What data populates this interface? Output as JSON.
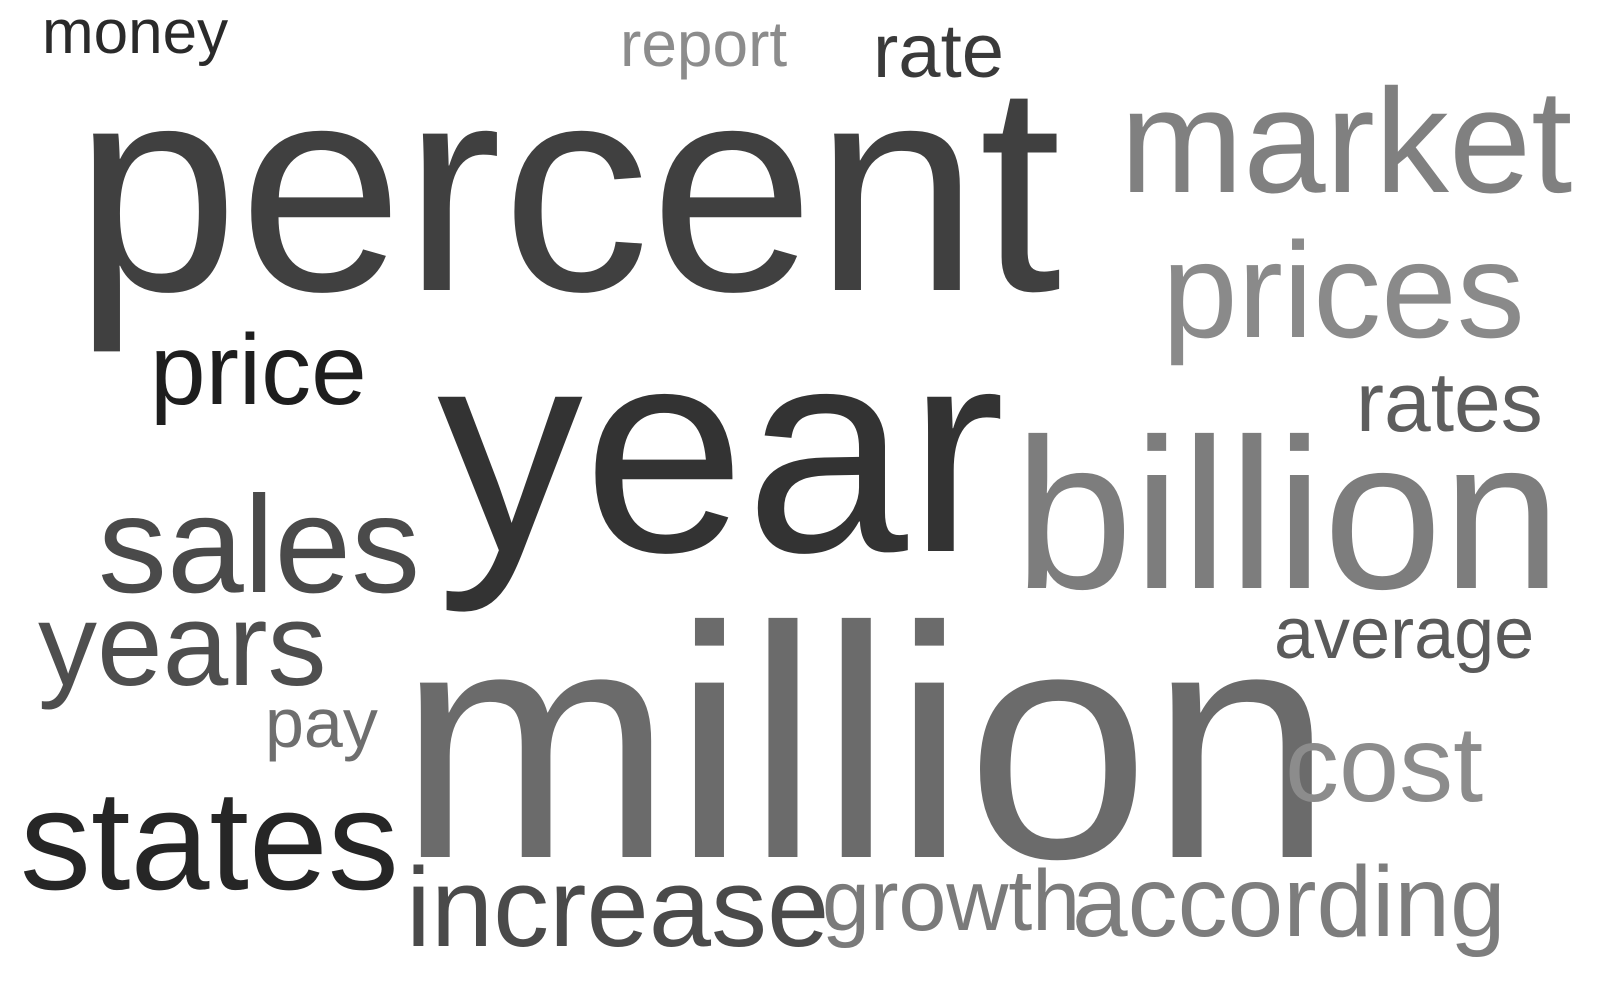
{
  "words": [
    {
      "id": "money",
      "text": "money",
      "color": "#2a2a2a"
    },
    {
      "id": "report",
      "text": "report",
      "color": "#8c8c8c"
    },
    {
      "id": "rate",
      "text": "rate",
      "color": "#3a3a3a"
    },
    {
      "id": "percent",
      "text": "percent",
      "color": "#404040"
    },
    {
      "id": "market",
      "text": "market",
      "color": "#808080"
    },
    {
      "id": "prices",
      "text": "prices",
      "color": "#8a8a8a"
    },
    {
      "id": "price",
      "text": "price",
      "color": "#1e1e1e"
    },
    {
      "id": "year",
      "text": "year",
      "color": "#333333"
    },
    {
      "id": "rates",
      "text": "rates",
      "color": "#5e5e5e"
    },
    {
      "id": "billion",
      "text": "billion",
      "color": "#7d7d7d"
    },
    {
      "id": "sales",
      "text": "sales",
      "color": "#4a4a4a"
    },
    {
      "id": "years",
      "text": "years",
      "color": "#4e4e4e"
    },
    {
      "id": "average",
      "text": "average",
      "color": "#5a5a5a"
    },
    {
      "id": "pay",
      "text": "pay",
      "color": "#6e6e6e"
    },
    {
      "id": "million",
      "text": "million",
      "color": "#6b6b6b"
    },
    {
      "id": "cost",
      "text": "cost",
      "color": "#8c8c8c"
    },
    {
      "id": "states",
      "text": "states",
      "color": "#262626"
    },
    {
      "id": "increase",
      "text": "increase",
      "color": "#4a4a4a"
    },
    {
      "id": "growth",
      "text": "growth",
      "color": "#7a7a7a"
    },
    {
      "id": "according",
      "text": "according",
      "color": "#7d7d7d"
    }
  ]
}
